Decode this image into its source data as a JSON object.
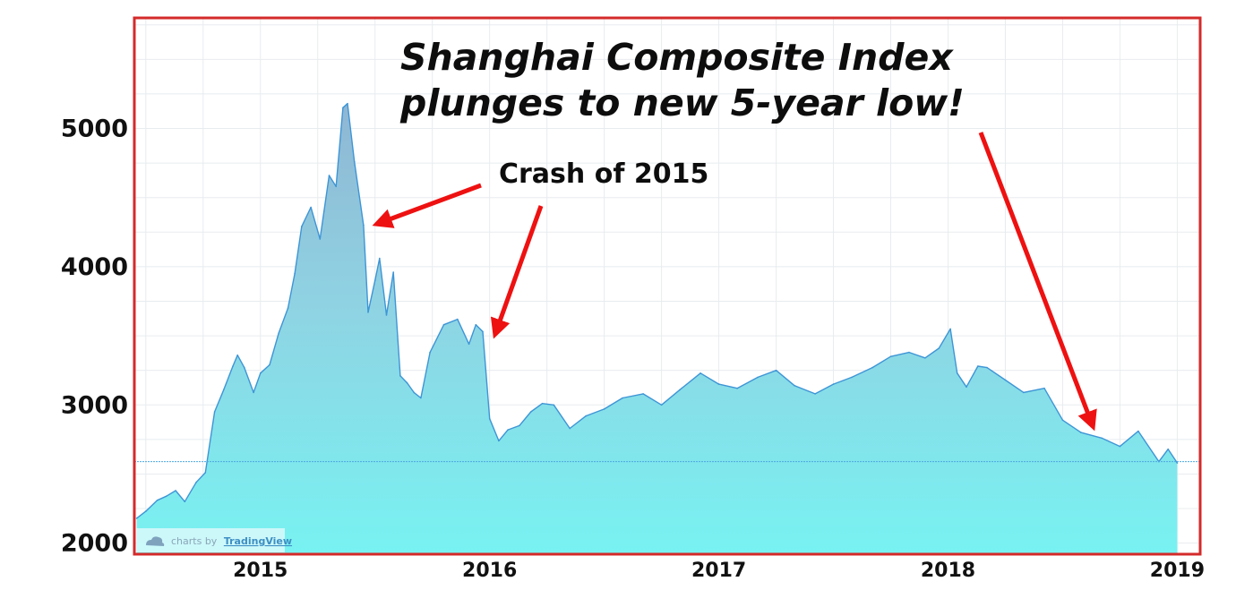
{
  "chart_data": {
    "type": "area",
    "title_lines": [
      "Shanghai Composite Index",
      "plunges to new 5-year low!"
    ],
    "annotation": "Crash of 2015",
    "watermark": {
      "prefix": "charts by",
      "brand": "TradingView"
    },
    "xlabel": "",
    "ylabel": "",
    "yticks": [
      2000,
      3000,
      4000,
      5000
    ],
    "xticks": [
      "2015",
      "2016",
      "2017",
      "2018",
      "2019"
    ],
    "xticks_values": [
      2015,
      2016,
      2017,
      2018,
      2019
    ],
    "ylim": [
      1920,
      5800
    ],
    "xlim": [
      2014.45,
      2019.1
    ],
    "reference_line": 2590,
    "grid": true,
    "colors": {
      "area_top": "#8fb6d3",
      "area_bottom": "#78f2f2",
      "line": "#3e95d6",
      "frame": "#d42a2a",
      "arrow": "#ee1111",
      "grid": "#e8ecef",
      "reference": "#4ea8df"
    },
    "series": [
      {
        "x": [
          2014.46,
          2014.5,
          2014.55,
          2014.59,
          2014.63,
          2014.67,
          2014.72,
          2014.76,
          2014.8,
          2014.84,
          2014.88,
          2014.9,
          2014.93,
          2014.97,
          2015.0,
          2015.04,
          2015.08,
          2015.12,
          2015.15,
          2015.18,
          2015.22,
          2015.26,
          2015.3,
          2015.33,
          2015.36,
          2015.38,
          2015.41,
          2015.45,
          2015.47,
          2015.5,
          2015.52,
          2015.55,
          2015.58,
          2015.61,
          2015.64,
          2015.67,
          2015.7,
          2015.74,
          2015.8,
          2015.86,
          2015.91,
          2015.94,
          2015.97,
          2016.0,
          2016.04,
          2016.08,
          2016.13,
          2016.18,
          2016.23,
          2016.28,
          2016.35,
          2016.42,
          2016.5,
          2016.58,
          2016.67,
          2016.75,
          2016.83,
          2016.92,
          2017.0,
          2017.08,
          2017.17,
          2017.25,
          2017.33,
          2017.42,
          2017.5,
          2017.58,
          2017.67,
          2017.75,
          2017.83,
          2017.9,
          2017.96,
          2018.01,
          2018.04,
          2018.08,
          2018.13,
          2018.17,
          2018.25,
          2018.33,
          2018.42,
          2018.5,
          2018.58,
          2018.67,
          2018.75,
          2018.83,
          2018.92,
          2018.96,
          2019.0
        ],
        "y": [
          2180,
          2230,
          2310,
          2340,
          2380,
          2300,
          2440,
          2510,
          2950,
          3110,
          3280,
          3360,
          3270,
          3090,
          3230,
          3290,
          3520,
          3700,
          3950,
          4290,
          4430,
          4200,
          4660,
          4580,
          5150,
          5180,
          4760,
          4300,
          3670,
          3900,
          4060,
          3650,
          3960,
          3210,
          3160,
          3090,
          3050,
          3380,
          3580,
          3620,
          3440,
          3580,
          3530,
          2900,
          2740,
          2820,
          2850,
          2950,
          3010,
          3000,
          2830,
          2920,
          2970,
          3050,
          3080,
          3000,
          3110,
          3230,
          3150,
          3120,
          3200,
          3250,
          3140,
          3080,
          3150,
          3200,
          3270,
          3350,
          3380,
          3340,
          3410,
          3550,
          3230,
          3130,
          3280,
          3270,
          3180,
          3090,
          3120,
          2890,
          2800,
          2760,
          2700,
          2810,
          2590,
          2680,
          2580
        ]
      }
    ]
  }
}
